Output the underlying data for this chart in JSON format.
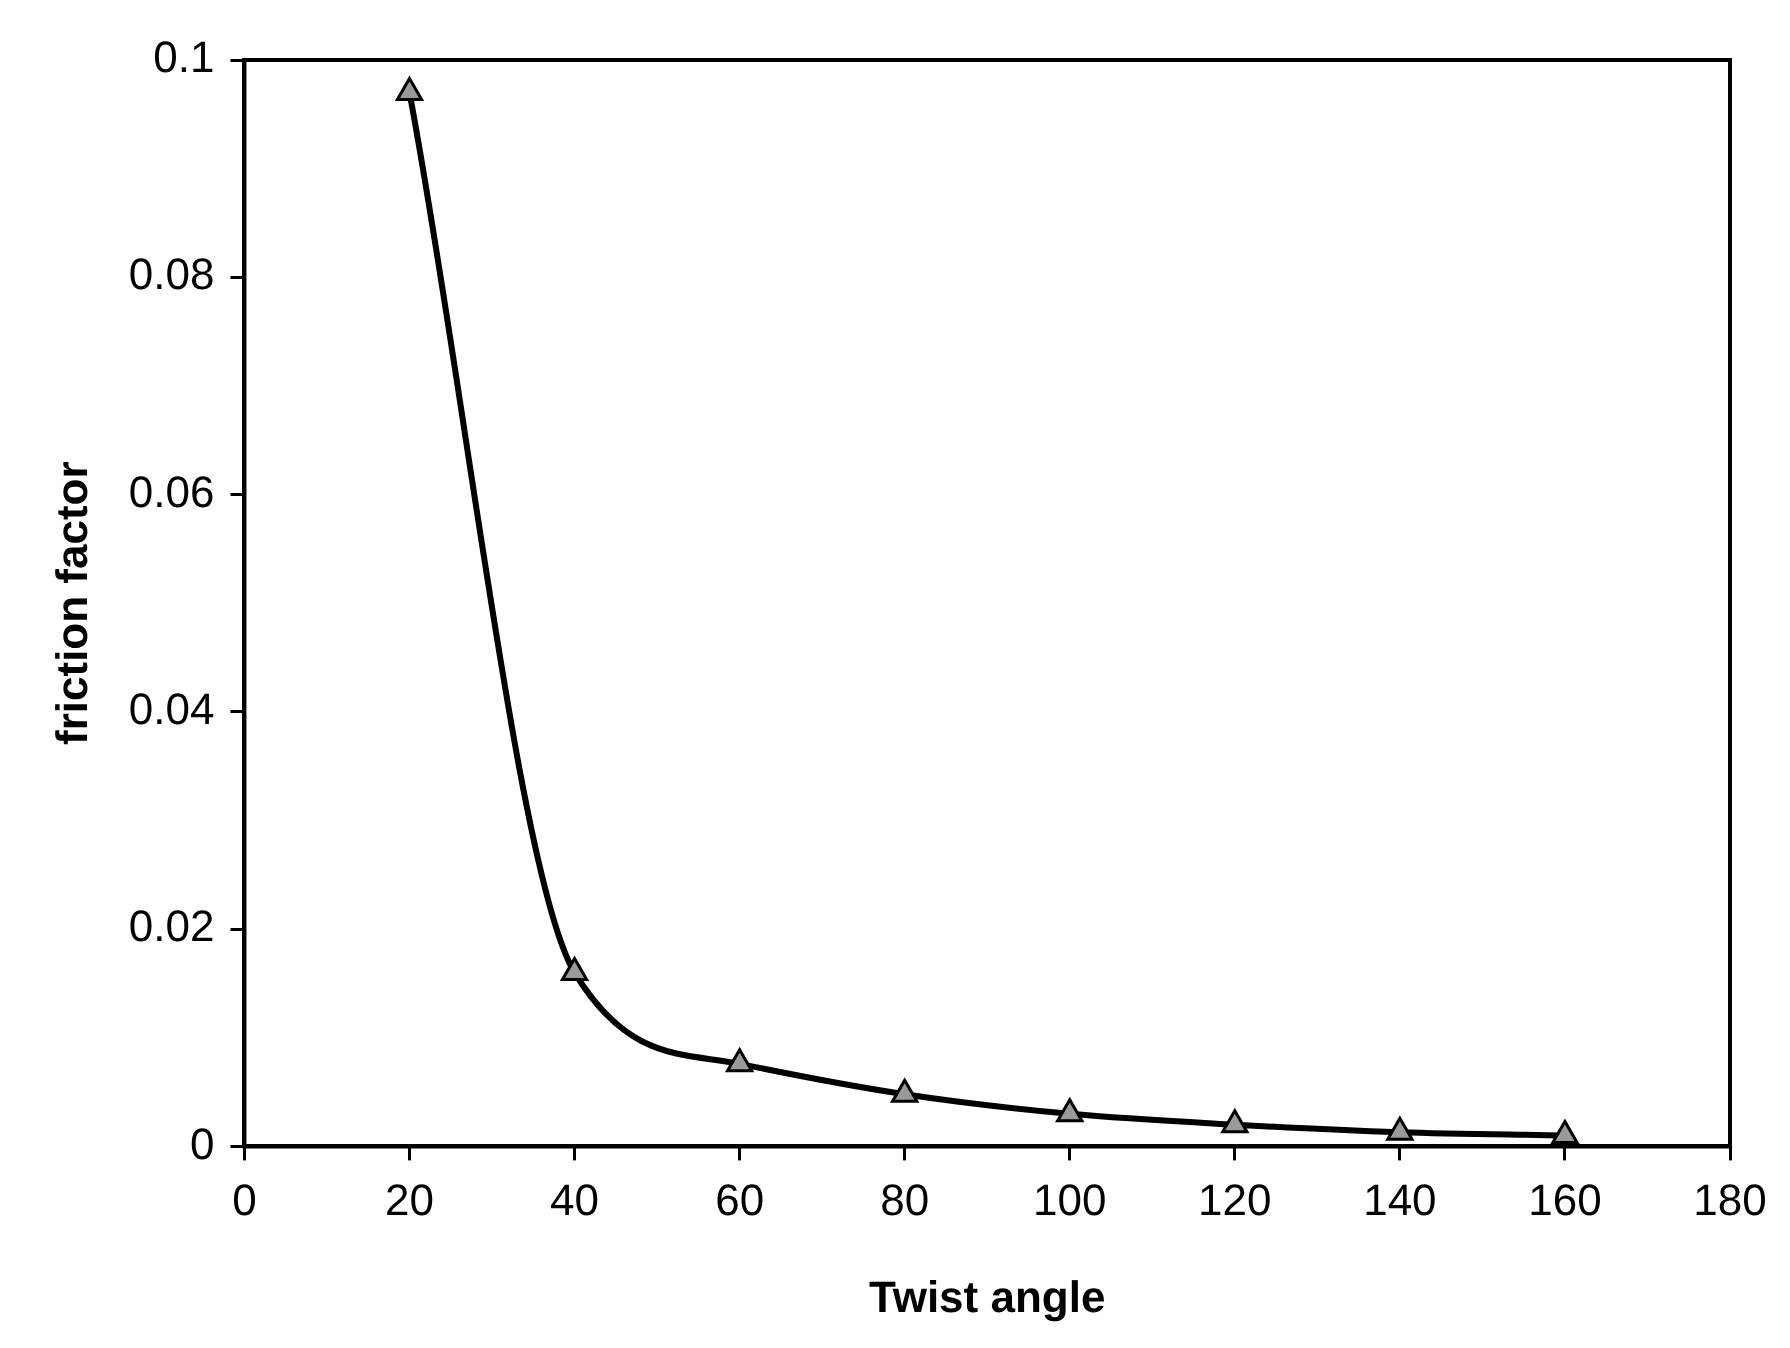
{
  "chart_data": {
    "type": "line",
    "xlabel": "Twist angle",
    "ylabel": "friction factor",
    "x": [
      20,
      40,
      60,
      80,
      100,
      120,
      140,
      160
    ],
    "series": [
      {
        "color": "#000000",
        "values": [
          0.097,
          0.016,
          0.0076,
          0.0048,
          0.003,
          0.002,
          0.0013,
          0.001
        ]
      }
    ],
    "xlim": [
      0,
      180
    ],
    "xticks": [
      0,
      20,
      40,
      60,
      80,
      100,
      120,
      140,
      160,
      180
    ],
    "ylim": [
      0,
      0.1
    ],
    "yticks": [
      0,
      0.02,
      0.04,
      0.06,
      0.08,
      0.1
    ],
    "grid": false,
    "legend": false,
    "marker": "triangle",
    "line_style": "solid"
  }
}
